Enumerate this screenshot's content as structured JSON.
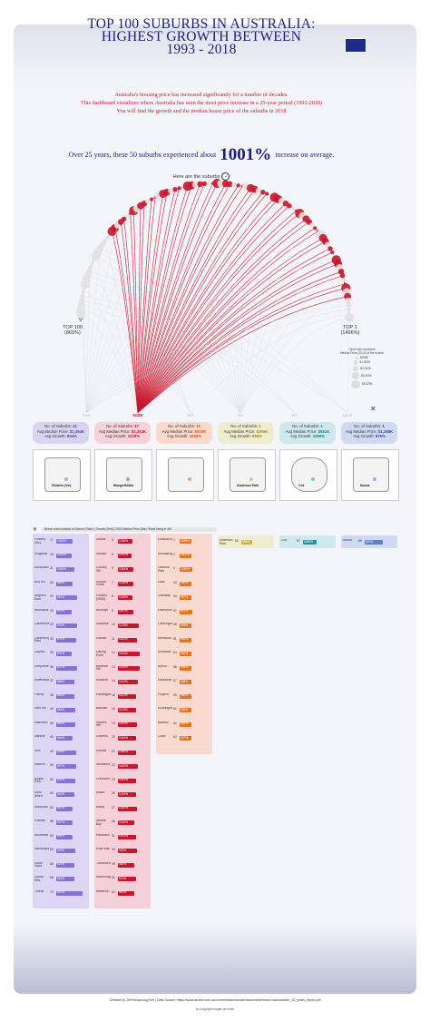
{
  "title_line1": "TOP 100 SUBURBS IN AUSTRALIA:",
  "title_line2": "HIGHEST GROWTH BETWEEN",
  "title_line3": "1993 - 2018",
  "intro_line1": "Australia's housing price has increased significantly for a number of decades.",
  "intro_line2": "This dashboard visualizes where Australia has seen the most price increase in a 25-year period (1993-2018)",
  "intro_line3": "You will find the growth and the median house price of the suburbs in 2018",
  "headline_pre": "Over 25 years, these 50 suburbs experienced about",
  "headline_value": "1001%",
  "headline_post": "increase on average.",
  "here_text": "Here are the suburbs",
  "arc_left_label": "TOP 100",
  "arc_left_value": "(865%)",
  "arc_right_label": "TOP 1",
  "arc_right_value": "(1496%)",
  "size_legend": {
    "title_line1": "Circle size represent",
    "title_line2": "Median Price (2018) of the suburb",
    "items": [
      "$298K",
      "$1,000K",
      "$2,000K",
      "$3,000K",
      "$3,829K"
    ]
  },
  "states_axis": [
    "TAS",
    "NSW",
    "WA",
    "SA",
    "NT",
    "QLD"
  ],
  "selected_state": "NSW",
  "region_label": "NSW",
  "state_summaries": [
    {
      "suburbs_label": "No. of Suburbs:",
      "suburbs": "41",
      "price_label": "Avg Median Price:",
      "price": "$1,454K",
      "growth_label": "Avg Growth:",
      "growth": "944%",
      "color": "#d9d4f2",
      "text": "#5a3fa0"
    },
    {
      "suburbs_label": "No. of Suburbs:",
      "suburbs": "37",
      "price_label": "Avg Median Price:",
      "price": "$1,344K",
      "growth_label": "Avg Growth:",
      "growth": "1029%",
      "color": "#f6d3da",
      "text": "#c8172c"
    },
    {
      "suburbs_label": "No. of Suburbs:",
      "suburbs": "15",
      "price_label": "Avg Median Price:",
      "price": "$503K",
      "growth_label": "Avg Growth:",
      "growth": "1069%",
      "color": "#fbd9cc",
      "text": "#d45a1c"
    },
    {
      "suburbs_label": "No. of Suburbs:",
      "suburbs": "1",
      "price_label": "Avg Median Price:",
      "price": "$266K",
      "growth_label": "Avg Growth:",
      "growth": "998%",
      "color": "#efeccf",
      "text": "#a08a1c"
    },
    {
      "suburbs_label": "No. of Suburbs:",
      "suburbs": "1",
      "price_label": "Avg Median Price:",
      "price": "$581K",
      "growth_label": "Avg Growth:",
      "growth": "1099%",
      "color": "#cfe8ee",
      "text": "#1c7a86"
    },
    {
      "suburbs_label": "No. of Suburbs:",
      "suburbs": "1",
      "price_label": "Avg Median Price:",
      "price": "$1,298K",
      "growth_label": "Avg Growth:",
      "growth": "876%",
      "color": "#cfd9f2",
      "text": "#2a4fa0"
    }
  ],
  "map_labels": [
    "Flinders (Vic)",
    "Wonga Beach",
    "",
    "Anderson Park",
    "Cox",
    "Noosa"
  ],
  "bar_chart_caption": "Below chart consists of Suburb | Rank | Growth (Text) | 2018 Median Price (Bar) *Rank being in 4th",
  "columns": [
    {
      "color": "#8a6fd6",
      "rows": [
        {
          "name": "Flinders (Vic)",
          "rank": "17",
          "growth": "1033%",
          "price": 0.35
        },
        {
          "name": "Kingsville",
          "rank": "18",
          "growth": "1014%",
          "price": 0.3
        },
        {
          "name": "Ashburton",
          "rank": "21",
          "growth": "1006%",
          "price": 0.4
        },
        {
          "name": "Box Hill",
          "rank": "26",
          "growth": "986%",
          "price": 0.35
        },
        {
          "name": "Brighton East",
          "rank": "29",
          "growth": "981%",
          "price": 0.55
        },
        {
          "name": "Brunswick",
          "rank": "30",
          "growth": "979%",
          "price": 0.3
        },
        {
          "name": "Camberwell",
          "rank": "32",
          "growth": "976%",
          "price": 0.55
        },
        {
          "name": "Canterbury East",
          "rank": "33",
          "growth": "975%",
          "price": 0.5
        },
        {
          "name": "Clayton",
          "rank": "35",
          "growth": "972%",
          "price": 0.3
        },
        {
          "name": "Deepdene",
          "rank": "36",
          "growth": "970%",
          "price": 0.55
        },
        {
          "name": "Elsternwick",
          "rank": "37",
          "growth": "968%",
          "price": 0.4
        },
        {
          "name": "Fitzroy",
          "rank": "38",
          "growth": "966%",
          "price": 0.4
        },
        {
          "name": "Glen Iris",
          "rank": "40",
          "growth": "963%",
          "price": 0.45
        },
        {
          "name": "Hawthorn",
          "rank": "45",
          "growth": "955%",
          "price": 0.45
        },
        {
          "name": "Ivanhoe",
          "rank": "46",
          "growth": "953%",
          "price": 0.35
        },
        {
          "name": "Kew",
          "rank": "49",
          "growth": "948%",
          "price": 0.5
        },
        {
          "name": "Malvern",
          "rank": "50",
          "growth": "947%",
          "price": 0.5
        },
        {
          "name": "Middle Park",
          "rank": "52",
          "growth": "944%",
          "price": 0.45
        },
        {
          "name": "Mont Albert",
          "rank": "53",
          "growth": "943%",
          "price": 0.4
        },
        {
          "name": "Northcote",
          "rank": "55",
          "growth": "941%",
          "price": 0.35
        },
        {
          "name": "Prahran",
          "rank": "58",
          "growth": "937%",
          "price": 0.35
        },
        {
          "name": "Richmond",
          "rank": "60",
          "growth": "935%",
          "price": 0.35
        },
        {
          "name": "Sandringham",
          "rank": "63",
          "growth": "929%",
          "price": 0.45
        },
        {
          "name": "South Yarra",
          "rank": "66",
          "growth": "921%",
          "price": 0.4
        },
        {
          "name": "Surrey Hills",
          "rank": "68",
          "growth": "918%",
          "price": 0.4
        },
        {
          "name": "Toorak",
          "rank": "70",
          "growth": "915%",
          "price": 0.8
        }
      ]
    },
    {
      "color": "#c8172c",
      "rows": [
        {
          "name": "Suffolk",
          "rank": "3",
          "growth": "1339%",
          "price": 0.25
        },
        {
          "name": "Stewart",
          "rank": "5",
          "growth": "1281%",
          "price": 0.2
        },
        {
          "name": "Clovelly Hill",
          "rank": "6",
          "growth": "1254%",
          "price": 0.3
        },
        {
          "name": "Double Creek",
          "rank": "7",
          "growth": "1215%",
          "price": 0.3
        },
        {
          "name": "Flinders (NSW)",
          "rank": "8",
          "growth": "1198%",
          "price": 0.25
        },
        {
          "name": "Brooklyn",
          "rank": "9",
          "growth": "1187%",
          "price": 0.3
        },
        {
          "name": "Vaucluse",
          "rank": "10",
          "growth": "1178%",
          "price": 0.55
        },
        {
          "name": "Gordon",
          "rank": "11",
          "growth": "1162%",
          "price": 0.45
        },
        {
          "name": "Darling Point",
          "rank": "12",
          "growth": "1151%",
          "price": 0.6
        },
        {
          "name": "Bellevue Hill",
          "rank": "13",
          "growth": "1140%",
          "price": 0.6
        },
        {
          "name": "Mosman",
          "rank": "14",
          "growth": "1132%",
          "price": 0.5
        },
        {
          "name": "Paddington",
          "rank": "15",
          "growth": "1121%",
          "price": 0.4
        },
        {
          "name": "Balmain",
          "rank": "16",
          "growth": "1110%",
          "price": 0.4
        },
        {
          "name": "Hunters Hill",
          "rank": "19",
          "growth": "1102%",
          "price": 0.45
        },
        {
          "name": "Lindfield",
          "rank": "20",
          "growth": "1094%",
          "price": 0.4
        },
        {
          "name": "Pymble",
          "rank": "22",
          "growth": "1080%",
          "price": 0.4
        },
        {
          "name": "Woollahra",
          "rank": "23",
          "growth": "1062%",
          "price": 0.5
        },
        {
          "name": "Cremorne",
          "rank": "24",
          "growth": "1051%",
          "price": 0.4
        },
        {
          "name": "Killara",
          "rank": "25",
          "growth": "1043%",
          "price": 0.4
        },
        {
          "name": "Manly",
          "rank": "27",
          "growth": "1020%",
          "price": 0.45
        },
        {
          "name": "Neutral Bay",
          "rank": "28",
          "growth": "1012%",
          "price": 0.35
        },
        {
          "name": "Randwick",
          "rank": "31",
          "growth": "1001%",
          "price": 0.4
        },
        {
          "name": "Rose Bay",
          "rank": "34",
          "growth": "993%",
          "price": 0.45
        },
        {
          "name": "Turramurra",
          "rank": "39",
          "growth": "980%",
          "price": 0.35
        },
        {
          "name": "Wahroonga",
          "rank": "41",
          "growth": "971%",
          "price": 0.4
        },
        {
          "name": "Waverton",
          "rank": "42",
          "growth": "962%",
          "price": 0.35
        }
      ]
    },
    {
      "color": "#e8731c",
      "rows": [
        {
          "name": "Loxahatchee",
          "rank": "1",
          "growth": "1496%",
          "price": 0.12
        },
        {
          "name": "Mundaring",
          "rank": "2",
          "growth": "1402%",
          "price": 0.12
        },
        {
          "name": "Osborne Park",
          "rank": "4",
          "growth": "1318%",
          "price": 0.15
        },
        {
          "name": "Leda",
          "rank": "43",
          "growth": "960%",
          "price": 0.12
        },
        {
          "name": "Golloway",
          "rank": "44",
          "growth": "957%",
          "price": 0.12
        },
        {
          "name": "Lesmurdie",
          "rank": "47",
          "growth": "951%",
          "price": 0.15
        },
        {
          "name": "Cannington",
          "rank": "48",
          "growth": "949%",
          "price": 0.12
        },
        {
          "name": "Kelmscott",
          "rank": "51",
          "growth": "945%",
          "price": 0.12
        },
        {
          "name": "Armadale",
          "rank": "54",
          "growth": "942%",
          "price": 0.12
        },
        {
          "name": "Byford",
          "rank": "56",
          "growth": "939%",
          "price": 0.12
        },
        {
          "name": "Mandurah",
          "rank": "57",
          "growth": "938%",
          "price": 0.12
        },
        {
          "name": "Pinjarra",
          "rank": "59",
          "growth": "936%",
          "price": 0.12
        },
        {
          "name": "Rockingham",
          "rank": "61",
          "growth": "932%",
          "price": 0.12
        },
        {
          "name": "Baldivis",
          "rank": "62",
          "growth": "930%",
          "price": 0.12
        },
        {
          "name": "Collie",
          "rank": "64",
          "growth": "927%",
          "price": 0.12
        }
      ]
    },
    {
      "color": "#c9b53c",
      "rows": [
        {
          "name": "Anderson Park",
          "rank": "65",
          "growth": "998%",
          "price": 0.1
        }
      ]
    },
    {
      "color": "#1c9aa8",
      "rows": [
        {
          "name": "Cox",
          "rank": "67",
          "growth": "1099%",
          "price": 0.2
        }
      ]
    },
    {
      "color": "#5a7fd6",
      "rows": [
        {
          "name": "Noosa",
          "rank": "69",
          "growth": "876%",
          "price": 0.4
        }
      ]
    }
  ],
  "footer_credit": "Created by Jeff Hwayoung Kim | Data Source: https://www.aussie.com.au/content/dam/aussie/documents/home-loans/aussie_25_years_report.pdf",
  "footer_note": "No copyright images are used",
  "colors": {
    "navy": "#1a1f7a",
    "red": "#c8172c",
    "grey": "#e3e1e1"
  },
  "chart_data": {
    "type": "arc",
    "title": "",
    "xlabel": "",
    "ylabel": "",
    "arc_range": [
      "TOP 100 (865%)",
      "TOP 1 (1496%)"
    ],
    "series": [
      {
        "values": [
          1496,
          1402,
          1339,
          1318,
          1281,
          1254,
          1215,
          1198,
          1187,
          1178
        ]
      }
    ]
  }
}
